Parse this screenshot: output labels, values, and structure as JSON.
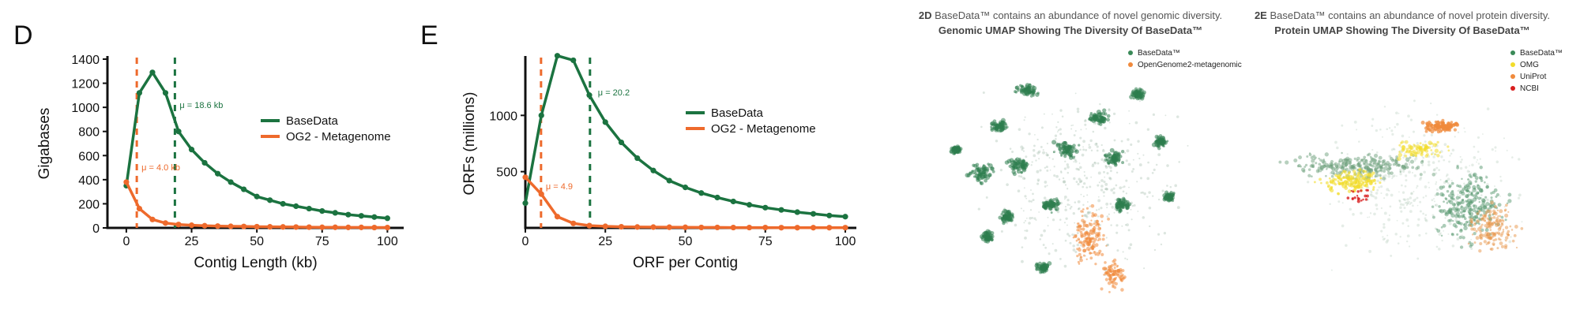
{
  "panel_d": {
    "letter": "D",
    "chart_data": {
      "type": "line",
      "xlabel": "Contig Length (kb)",
      "ylabel": "Gigabases",
      "xlim": [
        -3,
        102
      ],
      "ylim": [
        0,
        1400
      ],
      "xticks": [
        0,
        25,
        50,
        75,
        100
      ],
      "yticks": [
        0,
        200,
        400,
        600,
        800,
        1000,
        1200,
        1400
      ],
      "legend": "right",
      "series": [
        {
          "name": "BaseData",
          "color": "#1b7340",
          "x": [
            0,
            5,
            10,
            15,
            20,
            25,
            30,
            35,
            40,
            45,
            50,
            55,
            60,
            65,
            70,
            75,
            80,
            85,
            90,
            95,
            100
          ],
          "y": [
            350,
            1120,
            1290,
            1120,
            800,
            650,
            540,
            450,
            380,
            320,
            260,
            230,
            200,
            180,
            160,
            140,
            125,
            110,
            100,
            90,
            80
          ]
        },
        {
          "name": "OG2 - Metagenome",
          "color": "#ee6a2c",
          "x": [
            0,
            5,
            10,
            15,
            20,
            25,
            30,
            35,
            40,
            45,
            50,
            55,
            60,
            65,
            70,
            75,
            80,
            85,
            90,
            95,
            100
          ],
          "y": [
            380,
            160,
            70,
            40,
            28,
            22,
            18,
            15,
            13,
            12,
            10,
            9,
            8,
            7,
            6,
            5,
            5,
            4,
            4,
            3,
            3
          ]
        }
      ],
      "annotations": [
        {
          "text": "μ = 18.6 kb",
          "x": 18.6,
          "color": "#1b7340"
        },
        {
          "text": "μ = 4.0 kb",
          "x": 4.0,
          "color": "#ee6a2c"
        }
      ]
    }
  },
  "panel_e": {
    "letter": "E",
    "chart_data": {
      "type": "line",
      "xlabel": "ORF per Contig",
      "ylabel": "ORFs (millions)",
      "xlim": [
        0,
        100
      ],
      "ylim": [
        0,
        1500
      ],
      "xticks": [
        0,
        25,
        50,
        75,
        100
      ],
      "yticks": [
        500,
        1000
      ],
      "legend": "right",
      "series": [
        {
          "name": "BaseData",
          "color": "#1b7340",
          "x": [
            0,
            5,
            10,
            15,
            20,
            25,
            30,
            35,
            40,
            45,
            50,
            55,
            60,
            65,
            70,
            75,
            80,
            85,
            90,
            95,
            100
          ],
          "y": [
            220,
            1000,
            1530,
            1490,
            1180,
            940,
            760,
            620,
            510,
            420,
            360,
            310,
            270,
            235,
            205,
            180,
            160,
            140,
            125,
            110,
            100
          ]
        },
        {
          "name": "OG2 - Metagenome",
          "color": "#ee6a2c",
          "x": [
            0,
            5,
            10,
            15,
            20,
            25,
            30,
            35,
            40,
            45,
            50,
            55,
            60,
            65,
            70,
            75,
            80,
            85,
            90,
            95,
            100
          ],
          "y": [
            450,
            300,
            100,
            40,
            20,
            14,
            10,
            8,
            7,
            6,
            5,
            4,
            4,
            3,
            3,
            3,
            2,
            2,
            2,
            2,
            2
          ]
        }
      ],
      "annotations": [
        {
          "text": "μ = 20.2",
          "x": 20.2,
          "color": "#1b7340"
        },
        {
          "text": "μ = 4.9",
          "x": 4.9,
          "color": "#ee6a2c"
        }
      ]
    }
  },
  "umap_genomic": {
    "title_prefix": "2D",
    "title_rest": " BaseData™ contains an abundance of novel genomic diversity.",
    "subtitle": "Genomic UMAP Showing The Diversity Of BaseData™",
    "legend": [
      {
        "label": "BaseData™",
        "color": "#3a8a58"
      },
      {
        "label": "OpenGenome2-metagenomic",
        "color": "#f08a3c"
      }
    ]
  },
  "umap_protein": {
    "title_prefix": "2E",
    "title_rest": " BaseData™ contains an abundance of novel protein diversity.",
    "subtitle": "Protein UMAP Showing The Diversity Of BaseData™",
    "legend": [
      {
        "label": "BaseData™",
        "color": "#3a8a58"
      },
      {
        "label": "OMG",
        "color": "#f2dc2a"
      },
      {
        "label": "UniProt",
        "color": "#f08a3c"
      },
      {
        "label": "NCBI",
        "color": "#d81e1e"
      }
    ]
  }
}
